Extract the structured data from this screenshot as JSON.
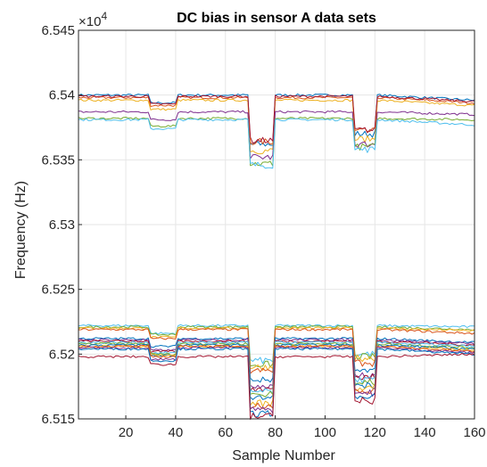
{
  "chart_data": {
    "type": "line",
    "title": "DC bias in sensor A data sets",
    "xlabel": "Sample Number",
    "ylabel": "Frequency (Hz)",
    "y_exponent_label": "×10",
    "y_exponent": "4",
    "xlim": [
      1,
      160
    ],
    "ylim": [
      65150,
      65450
    ],
    "xticks": [
      20,
      40,
      60,
      80,
      100,
      120,
      140,
      160
    ],
    "yticks": [
      65150,
      65200,
      65250,
      65300,
      65350,
      65400,
      65450
    ],
    "ytick_labels": [
      "6.515",
      "6.52",
      "6.525",
      "6.53",
      "6.535",
      "6.54",
      "6.545"
    ],
    "grid": true,
    "legend": "none",
    "segments": [
      {
        "from": 1,
        "to": 30,
        "level": "a"
      },
      {
        "from": 30,
        "to": 41,
        "level": "b"
      },
      {
        "from": 41,
        "to": 70,
        "level": "a"
      },
      {
        "from": 70,
        "to": 80,
        "level": "dip"
      },
      {
        "from": 80,
        "to": 112,
        "level": "a"
      },
      {
        "from": 112,
        "to": 121,
        "level": "dip2"
      },
      {
        "from": 121,
        "to": 160,
        "level": "a"
      }
    ],
    "series": [
      {
        "color": "#0072BD",
        "a": 65400,
        "b": 65394,
        "dip": 65362,
        "dip2": 65370,
        "end": 65396
      },
      {
        "color": "#D95319",
        "a": 65398,
        "b": 65392,
        "dip": 65364,
        "dip2": 65372,
        "end": 65394
      },
      {
        "color": "#EDB120",
        "a": 65396,
        "b": 65389,
        "dip": 65357,
        "dip2": 65366,
        "end": 65392
      },
      {
        "color": "#7E2F8E",
        "a": 65387,
        "b": 65381,
        "dip": 65352,
        "dip2": 65362,
        "end": 65385
      },
      {
        "color": "#77AC30",
        "a": 65382,
        "b": 65376,
        "dip": 65347,
        "dip2": 65360,
        "end": 65381
      },
      {
        "color": "#4DBEEE",
        "a": 65381,
        "b": 65374,
        "dip": 65346,
        "dip2": 65358,
        "end": 65377
      },
      {
        "color": "#A2142F",
        "a": 65399,
        "b": 65393,
        "dip": 65365,
        "dip2": 65373,
        "end": 65395
      },
      {
        "color": "#4DBEEE",
        "a": 65222,
        "b": 65216,
        "dip": 65195,
        "dip2": 65200,
        "end": 65221
      },
      {
        "color": "#77AC30",
        "a": 65221,
        "b": 65215,
        "dip": 65192,
        "dip2": 65198,
        "end": 65219
      },
      {
        "color": "#EDB120",
        "a": 65220,
        "b": 65213,
        "dip": 65190,
        "dip2": 65197,
        "end": 65218
      },
      {
        "color": "#D95319",
        "a": 65219,
        "b": 65212,
        "dip": 65187,
        "dip2": 65193,
        "end": 65216
      },
      {
        "color": "#0072BD",
        "a": 65212,
        "b": 65206,
        "dip": 65180,
        "dip2": 65187,
        "end": 65209
      },
      {
        "color": "#7E2F8E",
        "a": 65211,
        "b": 65203,
        "dip": 65176,
        "dip2": 65184,
        "end": 65208
      },
      {
        "color": "#A2142F",
        "a": 65210,
        "b": 65202,
        "dip": 65173,
        "dip2": 65182,
        "end": 65207
      },
      {
        "color": "#4DBEEE",
        "a": 65209,
        "b": 65201,
        "dip": 65171,
        "dip2": 65180,
        "end": 65206
      },
      {
        "color": "#77AC30",
        "a": 65208,
        "b": 65200,
        "dip": 65169,
        "dip2": 65178,
        "end": 65205
      },
      {
        "color": "#0072BD",
        "a": 65207,
        "b": 65199,
        "dip": 65166,
        "dip2": 65176,
        "end": 65204
      },
      {
        "color": "#EDB120",
        "a": 65206,
        "b": 65199,
        "dip": 65162,
        "dip2": 65174,
        "end": 65203
      },
      {
        "color": "#D95319",
        "a": 65206,
        "b": 65198,
        "dip": 65160,
        "dip2": 65172,
        "end": 65202
      },
      {
        "color": "#7E2F8E",
        "a": 65205,
        "b": 65196,
        "dip": 65157,
        "dip2": 65170,
        "end": 65201
      },
      {
        "color": "#0072BD",
        "a": 65204,
        "b": 65195,
        "dip": 65154,
        "dip2": 65168,
        "end": 65200
      },
      {
        "color": "#A2142F",
        "a": 65198,
        "b": 65192,
        "dip": 65152,
        "dip2": 65164,
        "end": 65200
      }
    ]
  }
}
